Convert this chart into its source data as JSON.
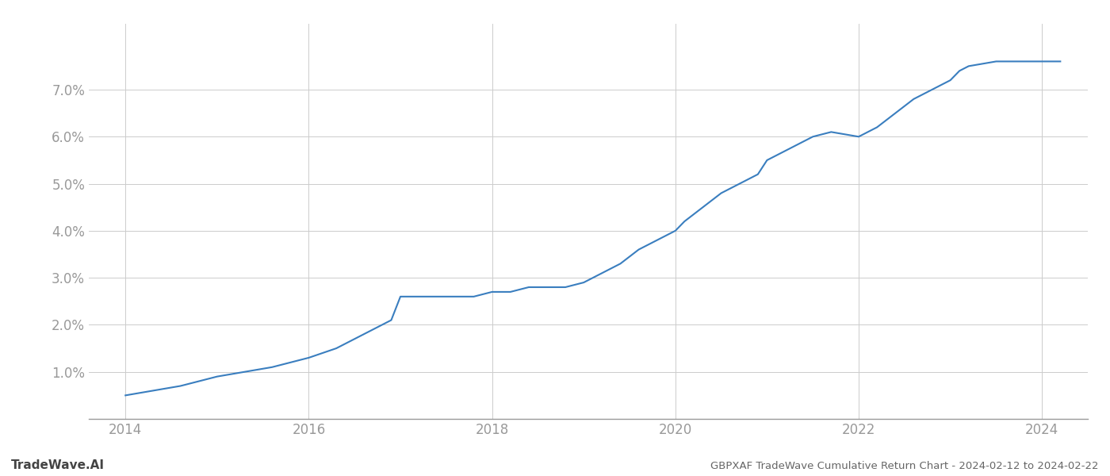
{
  "title": "GBPXAF TradeWave Cumulative Return Chart - 2024-02-12 to 2024-02-22",
  "watermark": "TradeWave.AI",
  "line_color": "#3a7ebf",
  "line_width": 1.5,
  "background_color": "#ffffff",
  "grid_color": "#cccccc",
  "x_years": [
    2014.0,
    2014.3,
    2014.6,
    2015.0,
    2015.3,
    2015.6,
    2016.0,
    2016.3,
    2016.6,
    2016.9,
    2017.0,
    2017.2,
    2017.4,
    2017.6,
    2017.8,
    2018.0,
    2018.2,
    2018.4,
    2018.6,
    2018.8,
    2019.0,
    2019.2,
    2019.4,
    2019.6,
    2019.8,
    2020.0,
    2020.1,
    2020.3,
    2020.5,
    2020.7,
    2020.9,
    2021.0,
    2021.3,
    2021.5,
    2021.7,
    2022.0,
    2022.2,
    2022.4,
    2022.6,
    2022.8,
    2023.0,
    2023.1,
    2023.2,
    2023.5,
    2024.0,
    2024.2
  ],
  "y_values": [
    0.005,
    0.006,
    0.007,
    0.009,
    0.01,
    0.011,
    0.013,
    0.015,
    0.018,
    0.021,
    0.026,
    0.026,
    0.026,
    0.026,
    0.026,
    0.027,
    0.027,
    0.028,
    0.028,
    0.028,
    0.029,
    0.031,
    0.033,
    0.036,
    0.038,
    0.04,
    0.042,
    0.045,
    0.048,
    0.05,
    0.052,
    0.055,
    0.058,
    0.06,
    0.061,
    0.06,
    0.062,
    0.065,
    0.068,
    0.07,
    0.072,
    0.074,
    0.075,
    0.076,
    0.076,
    0.076
  ],
  "xlim": [
    2013.6,
    2024.5
  ],
  "ylim": [
    0.0,
    0.084
  ],
  "yticks": [
    0.01,
    0.02,
    0.03,
    0.04,
    0.05,
    0.06,
    0.07
  ],
  "xticks": [
    2014,
    2016,
    2018,
    2020,
    2022,
    2024
  ],
  "tick_color": "#999999",
  "title_fontsize": 9.5,
  "tick_fontsize": 12,
  "watermark_fontsize": 11
}
